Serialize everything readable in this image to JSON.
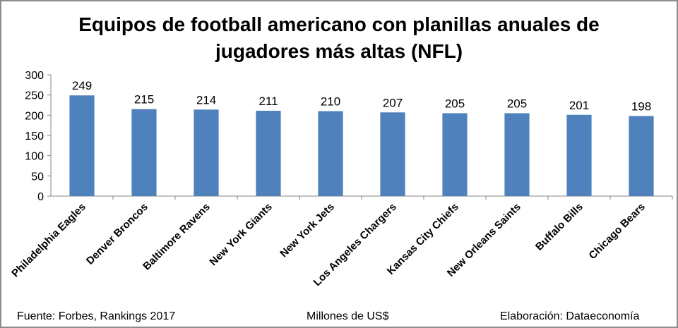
{
  "chart_data": {
    "type": "bar",
    "title_lines": [
      "Equipos de football americano con planillas anuales de",
      "jugadores más altas (NFL)"
    ],
    "categories": [
      "Philadelphia Eagles",
      "Denver Broncos",
      "Baltimore Ravens",
      "New York Giants",
      "New York Jets",
      "Los Angeles Chargers",
      "Kansas City Chiefs",
      "New Orleans Saints",
      "Buffalo Bills",
      "Chicago Bears"
    ],
    "values": [
      249,
      215,
      214,
      211,
      210,
      207,
      205,
      205,
      201,
      198
    ],
    "ylim": [
      0,
      300
    ],
    "yticks": [
      0,
      50,
      100,
      150,
      200,
      250,
      300
    ],
    "grid": false,
    "bar_color": "#4f81bd",
    "xlabel": "Millones de US$"
  },
  "footer": {
    "source": "Fuente: Forbes, Rankings 2017",
    "units": "Millones de US$",
    "credit": "Elaboración: Dataeconomía"
  }
}
